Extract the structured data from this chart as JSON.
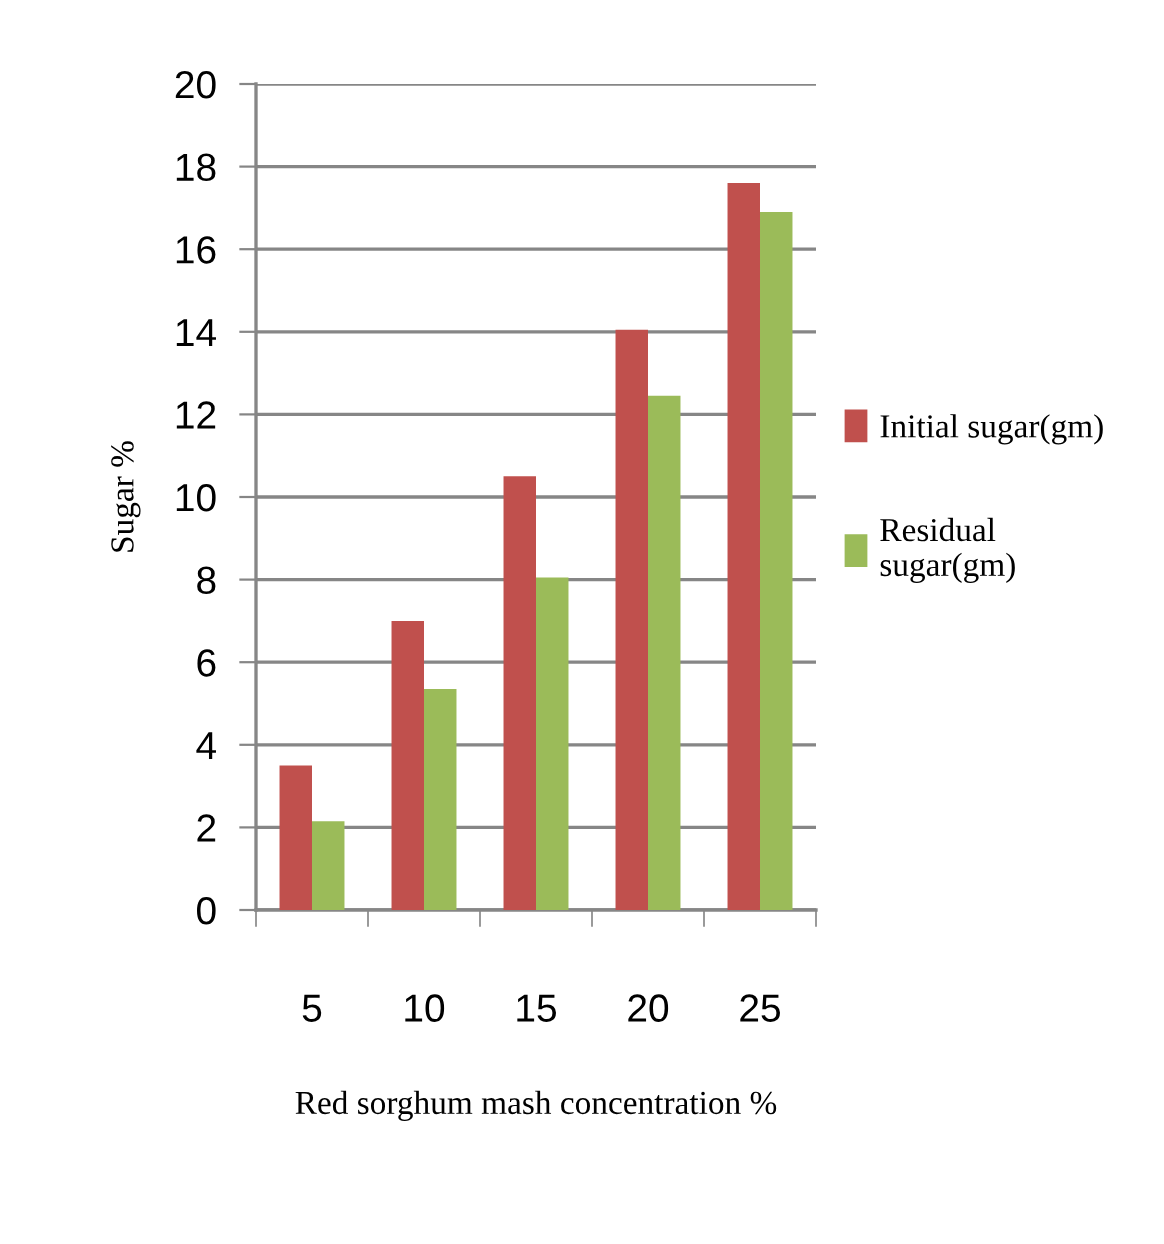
{
  "chart_data": {
    "type": "bar",
    "xlabel": "Red sorghum mash concentration %",
    "ylabel": "Sugar %",
    "categories": [
      "5",
      "10",
      "15",
      "20",
      "25"
    ],
    "series": [
      {
        "name": "Initial sugar(gm)",
        "color": "#c0504d",
        "values": [
          3.5,
          7.0,
          10.5,
          14.05,
          17.6
        ]
      },
      {
        "name": "Residual\nsugar(gm)",
        "color": "#9bbb59",
        "values": [
          2.15,
          5.35,
          8.05,
          12.45,
          16.9
        ]
      }
    ],
    "ylim": [
      0,
      20
    ],
    "yticks": [
      0,
      2,
      4,
      6,
      8,
      10,
      12,
      14,
      16,
      18,
      20
    ],
    "grid": "y",
    "legend": "right"
  }
}
